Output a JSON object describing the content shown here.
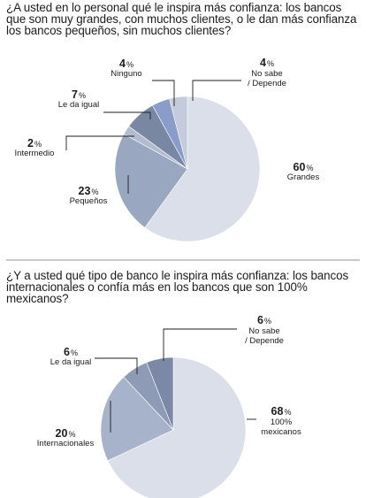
{
  "questions": {
    "q1": "¿A usted en lo personal qué le inspira más confianza: los bancos que son muy grandes, con muchos clientes, o le dan más confianza los bancos pequeños, sin muchos clientes?",
    "q2": "¿Y a usted qué tipo de banco le inspira más confianza: los bancos internacionales o confía más en los bancos que son 100% mexicanos?"
  },
  "chart_data": [
    {
      "type": "pie",
      "title": "¿A usted en lo personal qué le inspira más confianza: los bancos que son muy grandes, con muchos clientes, o le dan más confianza los bancos pequeños, sin muchos clientes?",
      "slices": [
        {
          "label": "Grandes",
          "value": 60,
          "display": "60",
          "label_lines": [
            "Grandes"
          ],
          "color": "#dadfe9",
          "label_anchor": "middle"
        },
        {
          "label": "Pequeños",
          "value": 23,
          "display": "23",
          "label_lines": [
            "Pequeños"
          ],
          "color": "#9aa7c1",
          "label_anchor": "middle"
        },
        {
          "label": "Intermedio",
          "value": 2,
          "display": "2",
          "label_lines": [
            "Intermedio"
          ],
          "color": "#b3bccf",
          "label_anchor": "middle"
        },
        {
          "label": "Le da igual",
          "value": 7,
          "display": "7",
          "label_lines": [
            "Le da igual"
          ],
          "color": "#7a87a3",
          "label_anchor": "middle"
        },
        {
          "label": "Ninguno",
          "value": 4,
          "display": "4",
          "label_lines": [
            "Ninguno"
          ],
          "color": "#8a9cc9",
          "label_anchor": "middle"
        },
        {
          "label": "No sabe / Depende",
          "value": 4,
          "display": "4",
          "label_lines": [
            "No sabe",
            "/ Depende"
          ],
          "color": "#c3cbdc",
          "label_anchor": "middle"
        }
      ],
      "unit": "%"
    },
    {
      "type": "pie",
      "title": "¿Y a usted qué tipo de banco le inspira más confianza: los bancos internacionales o confía más en los bancos que son 100% mexicanos?",
      "slices": [
        {
          "label": "100% mexicanos",
          "value": 68,
          "display": "68",
          "label_lines": [
            "100%",
            "mexicanos"
          ],
          "color": "#dadfe9",
          "label_anchor": "middle"
        },
        {
          "label": "Internacionales",
          "value": 20,
          "display": "20",
          "label_lines": [
            "Internacionales"
          ],
          "color": "#a7b3cb",
          "label_anchor": "middle"
        },
        {
          "label": "Le da igual",
          "value": 6,
          "display": "6",
          "label_lines": [
            "Le da igual"
          ],
          "color": "#8e9bb7",
          "label_anchor": "middle"
        },
        {
          "label": "No sabe / Depende",
          "value": 6,
          "display": "6",
          "label_lines": [
            "No sabe",
            "/ Depende"
          ],
          "color": "#7b88a6",
          "label_anchor": "middle"
        }
      ],
      "unit": "%"
    }
  ]
}
